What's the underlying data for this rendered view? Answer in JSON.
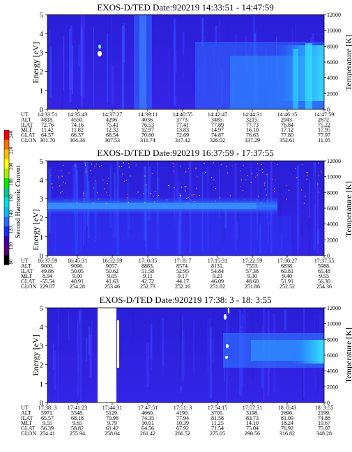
{
  "colorbar": {
    "label": "Second Harmonic Current",
    "ticks": [
      "240",
      "220",
      "200",
      "180",
      "160",
      "140",
      "120",
      "100",
      "80"
    ],
    "colors": [
      "#000000",
      "#5a0070",
      "#3a00b0",
      "#1a2aff",
      "#2a6aff",
      "#00bfff",
      "#00e0e0",
      "#00cc88",
      "#00ee00",
      "#aaee00",
      "#ffff00",
      "#ffc000",
      "#ff7000",
      "#ff0000"
    ]
  },
  "chart_data": [
    {
      "type": "heatmap",
      "title": "EXOS-D/TED   Date:920219  14:33:51 - 14:47:59",
      "ylabel": "Energy [eV]",
      "y2label": "Temperature [K]",
      "ylim": [
        0,
        5
      ],
      "y2lim": [
        0,
        12000
      ],
      "y_ticks": [
        "0",
        "1",
        "2",
        "3",
        "4",
        "5"
      ],
      "y2_ticks": [
        "0",
        "2000",
        "4000",
        "6000",
        "8000",
        "10000",
        "12000"
      ],
      "orbit_table": {
        "row_labels": [
          "UT",
          "ALT",
          "ILAT",
          "MLT",
          "GLAT",
          "GLON"
        ],
        "columns": [
          [
            "14:33:51",
            "4818.",
            "72.76",
            "11.42",
            "64.57",
            "301.70"
          ],
          [
            "14:35:43",
            "4550.",
            "74.16",
            "11.82",
            "66.37",
            "304.34"
          ],
          [
            "14:37:27",
            "4296.",
            "75.41",
            "12.32",
            "68.54",
            "307.53"
          ],
          [
            "14:39:11",
            "4036.",
            "76.53",
            "12.97",
            "70.60",
            "311.74"
          ],
          [
            "14:40:55",
            "3773.",
            "77.41",
            "13.83",
            "72.69",
            "317.42"
          ],
          [
            "14:42:47",
            "3485.",
            "77.89",
            "14.97",
            "74.87",
            "326.02"
          ],
          [
            "14:44:31",
            "3215.",
            "77.73",
            "16.10",
            "76.63",
            "337.29"
          ],
          [
            "14:46:15",
            "2943.",
            "76.84",
            "17.12",
            "77.80",
            "352.61"
          ],
          [
            "14:47:59",
            "2672.",
            "75.22",
            "17.95",
            "77.97",
            "11.05"
          ]
        ]
      }
    },
    {
      "type": "heatmap",
      "title": "EXOS-D/TED   Date:920219  16:37:59 - 17:37:55",
      "ylabel": "Energy [eV]",
      "y2label": "Temperature [K]",
      "ylim": [
        0,
        5
      ],
      "y2lim": [
        0,
        12000
      ],
      "y_ticks": [
        "0",
        "1",
        "2",
        "3",
        "4",
        "5"
      ],
      "y2_ticks": [
        "0",
        "2000",
        "4000",
        "6000",
        "8000",
        "10000",
        "12000"
      ],
      "orbit_table": {
        "row_labels": [
          "UT",
          "ALT",
          "ILAT",
          "MLT",
          "GLAT",
          "GLON"
        ],
        "columns": [
          [
            "16:37:59",
            "9000.",
            "49.86",
            "8.94",
            "-55.54",
            "229.07"
          ],
          [
            "16:45:31",
            "9096.",
            "50.05",
            "9.00",
            "40.91",
            "254.28"
          ],
          [
            "16:52:59",
            "9057.",
            "50.62",
            "9.05",
            "41.63",
            "253.46"
          ],
          [
            "17: 0:35",
            "8883.",
            "51.58",
            "9.11",
            "42.72",
            "252.73"
          ],
          [
            "17: 8: 7",
            "8574.",
            "52.95",
            "9.17",
            "44.17",
            "252.16"
          ],
          [
            "17:15:31",
            "8131.",
            "54.84",
            "9.23",
            "46.09",
            "251.82"
          ],
          [
            "17:22:59",
            "7553.",
            "57.38",
            "9.30",
            "48.60",
            "251.86"
          ],
          [
            "17:30:27",
            "6838.",
            "60.81",
            "9.40",
            "51.91",
            "252.52"
          ],
          [
            "17:37:55",
            "5988.",
            "65.48",
            "9.55",
            "56.30",
            "254.36"
          ]
        ]
      }
    },
    {
      "type": "heatmap",
      "title": "EXOS-D/TED   Date:920219  17:38: 3 - 18: 3:55",
      "ylabel": "Energy [eV]",
      "y2label": "Temperature [K]",
      "ylim": [
        0,
        5
      ],
      "y2lim": [
        0,
        12000
      ],
      "y_ticks": [
        "0",
        "1",
        "2",
        "3",
        "4",
        "5"
      ],
      "y2_ticks": [
        "0",
        "2000",
        "4000",
        "6000",
        "8000",
        "10000",
        "12000"
      ],
      "orbit_table": {
        "row_labels": [
          "UT",
          "ALT",
          "ILAT",
          "MLT",
          "GLAT",
          "GLON"
        ],
        "columns": [
          [
            "17:38: 3",
            "5971.",
            "65.57",
            "9.55",
            "56.39",
            "254.41"
          ],
          [
            "17:41:23",
            "5548.",
            "68.18",
            "9.65",
            "58.82",
            "255.94"
          ],
          [
            "17:44:31",
            "5129.",
            "70.98",
            "9.79",
            "61.42",
            "258.04"
          ],
          [
            "17:47:51",
            "4660.",
            "74.35",
            "10.01",
            "64.56",
            "261.42"
          ],
          [
            "17:51: 3",
            "4190.",
            "77.94",
            "10.39",
            "67.92",
            "266.52"
          ],
          [
            "17:54:15",
            "3705.",
            "81.58",
            "11.25",
            "71.54",
            "275.05"
          ],
          [
            "17:57:31",
            "3198.",
            "83.73",
            "14.10",
            "75.04",
            "290.56"
          ],
          [
            "18: 0:43",
            "2696.",
            "81.09",
            "18.24",
            "76.92",
            "316.82"
          ],
          [
            "18: 3:55",
            "2199.",
            "74.88",
            "19.67",
            "75.07",
            "348.28"
          ]
        ]
      }
    }
  ]
}
